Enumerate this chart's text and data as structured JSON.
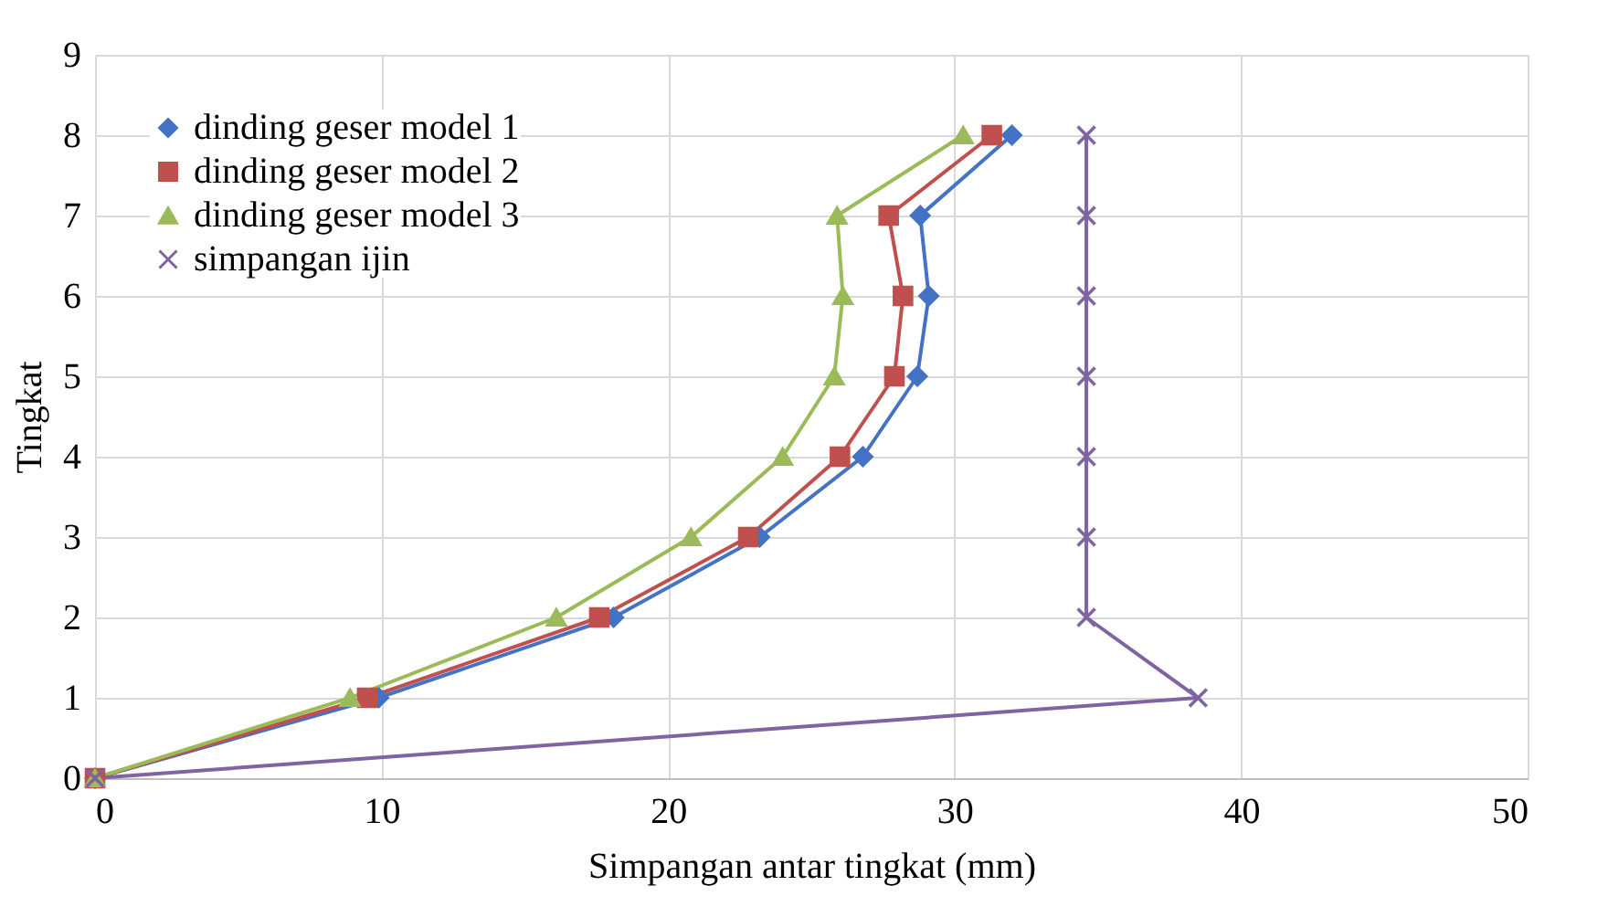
{
  "chart_data": {
    "type": "line",
    "xlabel": "Simpangan antar tingkat (mm)",
    "ylabel": "Tingkat",
    "xlim": [
      0,
      50
    ],
    "xticks": [
      0,
      10,
      20,
      30,
      40,
      50
    ],
    "ylim": [
      0,
      9
    ],
    "yticks": [
      0,
      1,
      2,
      3,
      4,
      5,
      6,
      7,
      8,
      9
    ],
    "grid": true,
    "legend": "top left",
    "series": [
      {
        "name": "dinding geser model 1",
        "color": "#4472c4",
        "marker": "diamond",
        "x": [
          0,
          9.9,
          18.1,
          23.2,
          26.8,
          28.7,
          29.1,
          28.8,
          32.0
        ],
        "values": [
          0,
          1,
          2,
          3,
          4,
          5,
          6,
          7,
          8
        ]
      },
      {
        "name": "dinding geser model 2",
        "color": "#c0504d",
        "marker": "square",
        "x": [
          0,
          9.5,
          17.6,
          22.8,
          26.0,
          27.9,
          28.2,
          27.7,
          31.3
        ],
        "values": [
          0,
          1,
          2,
          3,
          4,
          5,
          6,
          7,
          8
        ]
      },
      {
        "name": "dinding geser model 3",
        "color": "#9bbb59",
        "marker": "triangle",
        "x": [
          0,
          8.9,
          16.1,
          20.8,
          24.0,
          25.8,
          26.1,
          25.9,
          30.3
        ],
        "values": [
          0,
          1,
          2,
          3,
          4,
          5,
          6,
          7,
          8
        ]
      },
      {
        "name": "simpangan ijin",
        "color": "#8064a2",
        "marker": "cross",
        "x": [
          0,
          38.5,
          34.6,
          34.6,
          34.6,
          34.6,
          34.6,
          34.6,
          34.6
        ],
        "values": [
          0,
          1,
          2,
          3,
          4,
          5,
          6,
          7,
          8
        ]
      }
    ]
  }
}
